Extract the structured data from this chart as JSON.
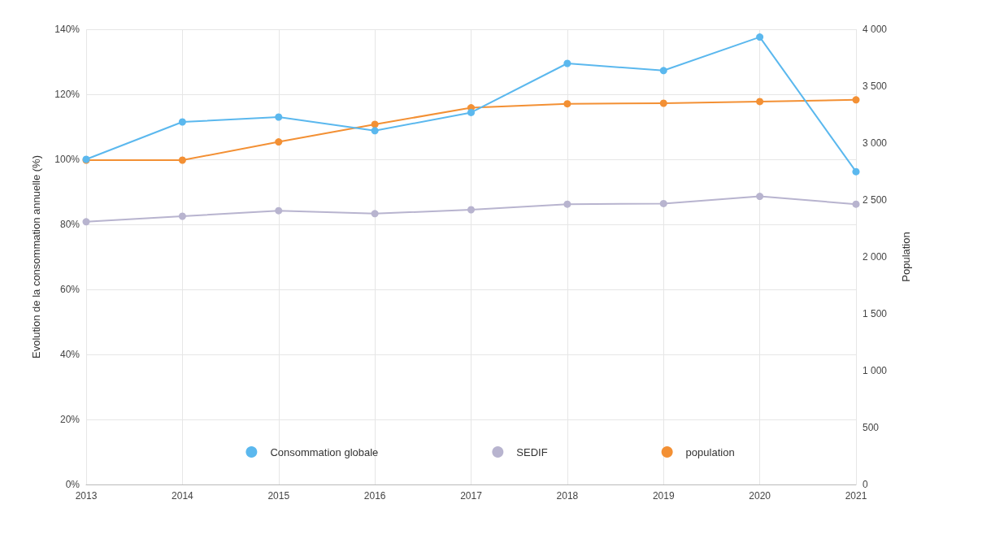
{
  "chart_data": {
    "type": "line",
    "ylabel": "Evolution de la consommation annuelle (%)",
    "y2label": "Population",
    "categories": [
      "2013",
      "2014",
      "2015",
      "2016",
      "2017",
      "2018",
      "2019",
      "2020",
      "2021"
    ],
    "series": [
      {
        "name": "Consommation globale",
        "color": "#5bb8ee",
        "values": [
          100,
          111.5,
          113,
          108.8,
          114.4,
          129.5,
          127.3,
          137.6,
          96.2
        ]
      },
      {
        "name": "SEDIF",
        "color": "#b8b4cf",
        "values": [
          80.8,
          82.5,
          84.2,
          83.3,
          84.5,
          86.2,
          86.4,
          88.6,
          86.2
        ]
      },
      {
        "name": "population",
        "color": "#f39034",
        "axis": "y2",
        "values": [
          2850,
          2850,
          3010,
          3165,
          3310,
          3345,
          3350,
          3365,
          3380
        ]
      }
    ],
    "ylim": [
      0,
      140
    ],
    "yticks": [
      {
        "value": 0,
        "label": "0%"
      },
      {
        "value": 20,
        "label": "20%"
      },
      {
        "value": 40,
        "label": "40%"
      },
      {
        "value": 60,
        "label": "60%"
      },
      {
        "value": 80,
        "label": "80%"
      },
      {
        "value": 100,
        "label": "100%"
      },
      {
        "value": 120,
        "label": "120%"
      },
      {
        "value": 140,
        "label": "140%"
      }
    ],
    "y2lim": [
      0,
      4000
    ],
    "y2ticks": [
      0,
      500,
      {
        "value": 1000,
        "label": "1 000"
      },
      {
        "value": 1500,
        "label": "1 500"
      },
      {
        "value": 2000,
        "label": "2 000"
      },
      {
        "value": 2500,
        "label": "2 500"
      },
      {
        "value": 3000,
        "label": "3 000"
      },
      {
        "value": 3500,
        "label": "3 500"
      },
      {
        "value": 4000,
        "label": "4 000"
      }
    ],
    "grid": true,
    "legend": "bottom",
    "marker": "circle",
    "line_style": "solid"
  }
}
